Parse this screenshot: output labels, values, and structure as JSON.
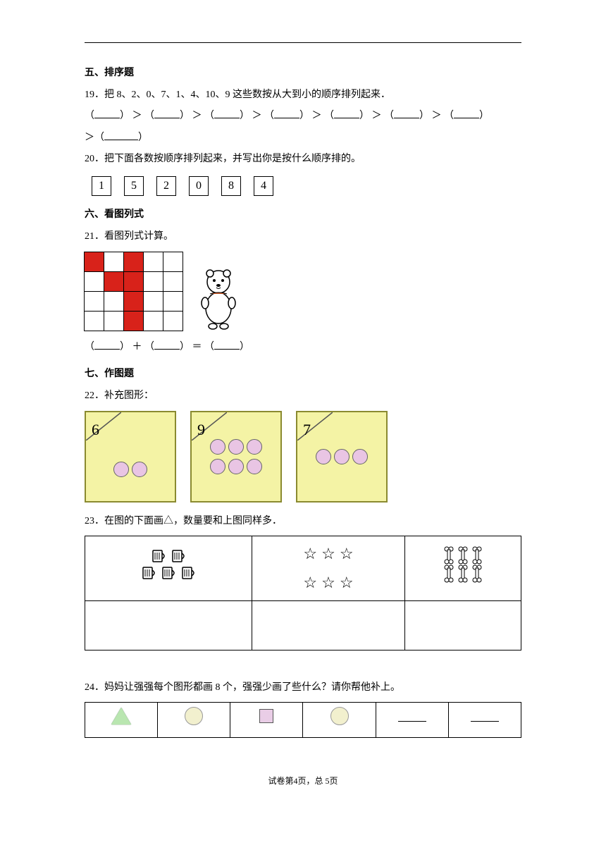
{
  "section5": {
    "title": "五、排序题"
  },
  "q19": {
    "num": "19．",
    "text": "把 8、2、0、7、1、4、10、9 这些数按从大到小的顺序排列起来．",
    "sep": " ＞ "
  },
  "q20": {
    "num": "20．",
    "text": "把下面各数按顺序排列起来，并写出你是按什么顺序排的。",
    "numbers": [
      "1",
      "5",
      "2",
      "0",
      "8",
      "4"
    ]
  },
  "section6": {
    "title": "六、看图列式"
  },
  "q21": {
    "num": "21．",
    "text": "看图列式计算。",
    "grid": {
      "rows": 4,
      "cols": 5,
      "red_cells": [
        [
          0,
          0
        ],
        [
          0,
          2
        ],
        [
          1,
          1
        ],
        [
          1,
          2
        ],
        [
          2,
          2
        ],
        [
          3,
          2
        ]
      ],
      "cell_size": 28
    },
    "equation_parts": [
      "（",
      "） ＋ （",
      "） ＝ （",
      "）"
    ]
  },
  "section7": {
    "title": "七、作图题"
  },
  "q22": {
    "num": "22．",
    "text": "补充图形：",
    "cards": [
      {
        "label": "6",
        "rows": [
          2
        ]
      },
      {
        "label": "9",
        "rows": [
          3,
          3
        ]
      },
      {
        "label": "7",
        "rows": [
          3
        ]
      }
    ],
    "card_bg": "#f4f3a5",
    "circle_fill": "#e9c5e4"
  },
  "q23": {
    "num": "23．",
    "text": "在图的下面画△，数量要和上图同样多．",
    "cells": [
      {
        "type": "mugs",
        "rows": [
          2,
          3
        ]
      },
      {
        "type": "stars",
        "rows": [
          3,
          3
        ]
      },
      {
        "type": "bones",
        "rows": [
          3,
          3
        ]
      }
    ]
  },
  "q24": {
    "num": "24．",
    "text": "妈妈让强强每个图形都画 8 个，强强少画了些什么？请你帮他补上。",
    "cells": [
      "triangle",
      "circle",
      "square",
      "circle",
      "blank",
      "blank"
    ]
  },
  "footer": {
    "text": "试卷第4页，总 5页"
  }
}
